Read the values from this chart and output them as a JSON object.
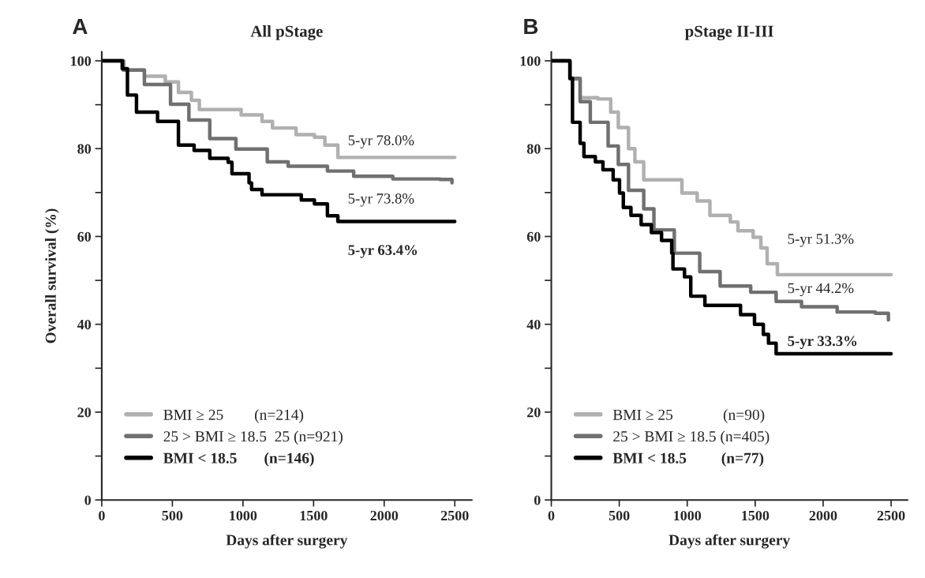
{
  "chart_data": [
    {
      "type": "step",
      "title": "All pStage",
      "xlabel": "Days after surgery",
      "ylabel": "Overall survival (%)",
      "xlim": [
        0,
        2620
      ],
      "ylim": [
        0,
        102
      ],
      "xticks": [
        0,
        500,
        1000,
        1500,
        2000,
        2500
      ],
      "yticks": [
        0,
        {
          "value": 10,
          "label": null
        },
        20,
        {
          "value": 30,
          "label": null
        },
        40,
        {
          "value": 50,
          "label": null
        },
        60,
        {
          "value": 70,
          "label": null
        },
        80,
        {
          "value": 90,
          "label": null
        },
        100
      ],
      "grid": false,
      "legend": "bottom left",
      "annotations": [
        "A",
        "5-yr 78.0%",
        "5-yr 73.8%",
        "5-yr 63.4%"
      ],
      "series": [
        {
          "name": "BMI ≥ 25        (n=214)",
          "color": "#b0b0b0",
          "x": [
            0,
            154,
            302,
            450,
            543,
            635,
            691,
            913,
            987,
            1135,
            1209,
            1376,
            1506,
            1580,
            1672,
            2500
          ],
          "values": [
            100,
            97.9,
            96.5,
            95.2,
            92.8,
            91.0,
            88.9,
            88.9,
            87.7,
            86.2,
            84.7,
            83.2,
            82.6,
            80.8,
            78.0,
            78.0
          ]
        },
        {
          "name": "25 > BMI ≥ 18.5  25 (n=921)",
          "color": "#707070",
          "x": [
            0,
            154,
            302,
            487,
            617,
            765,
            950,
            1172,
            1320,
            1598,
            1784,
            2061,
            2395,
            2480
          ],
          "values": [
            100,
            97.9,
            94.6,
            90.1,
            86.5,
            82.3,
            79.9,
            77.0,
            76.0,
            74.9,
            73.7,
            73.1,
            73.0,
            72.2
          ]
        },
        {
          "name": "BMI < 18.5       (n=146)",
          "color": "#000000",
          "x": [
            0,
            145,
            182,
            246,
            395,
            478,
            543,
            654,
            765,
            895,
            922,
            1043,
            1061,
            1135,
            1376,
            1413,
            1506,
            1598,
            1672,
            2500
          ],
          "values": [
            100,
            98.2,
            92.2,
            88.3,
            86.2,
            86.2,
            80.8,
            79.6,
            77.8,
            76.9,
            74.3,
            72.2,
            70.7,
            69.5,
            69.5,
            68.3,
            67.4,
            64.7,
            63.4,
            63.4
          ]
        }
      ]
    },
    {
      "type": "step",
      "title": "pStage II-III",
      "xlabel": "Days after surgery",
      "xlim": [
        0,
        2620
      ],
      "ylim": [
        0,
        102
      ],
      "xticks": [
        0,
        500,
        1000,
        1500,
        2000,
        2500
      ],
      "yticks": [
        0,
        {
          "value": 10,
          "label": null
        },
        20,
        {
          "value": 30,
          "label": null
        },
        40,
        {
          "value": 50,
          "label": null
        },
        60,
        {
          "value": 70,
          "label": null
        },
        80,
        {
          "value": 90,
          "label": null
        },
        100
      ],
      "grid": false,
      "legend": "bottom left",
      "annotations": [
        "B",
        "5-yr 51.3%",
        "5-yr 44.2%",
        "5-yr 33.3%"
      ],
      "series": [
        {
          "name": "BMI ≥ 25             (n=90)",
          "color": "#b0b0b0",
          "x": [
            0,
            137,
            212,
            343,
            437,
            493,
            568,
            615,
            680,
            905,
            961,
            1073,
            1167,
            1317,
            1373,
            1485,
            1542,
            1588,
            1663,
            2500
          ],
          "values": [
            100,
            95.8,
            91.6,
            91.3,
            88.3,
            84.8,
            80.0,
            77.0,
            72.9,
            72.9,
            69.9,
            68.1,
            64.8,
            63.3,
            61.3,
            59.8,
            57.4,
            53.8,
            51.3,
            51.3
          ]
        },
        {
          "name": "25 > BMI ≥ 18.5 (n=405)",
          "color": "#707070",
          "x": [
            0,
            137,
            212,
            287,
            418,
            493,
            568,
            680,
            755,
            905,
            1092,
            1242,
            1467,
            1654,
            1841,
            2103,
            2384,
            2480
          ],
          "values": [
            100,
            96.0,
            90.7,
            86.0,
            80.6,
            76.4,
            70.5,
            66.3,
            61.5,
            56.2,
            52.0,
            48.7,
            47.3,
            45.2,
            44.0,
            42.8,
            42.5,
            41.0
          ]
        },
        {
          "name": "BMI < 18.5         (n=77)",
          "color": "#000000",
          "x": [
            0,
            137,
            156,
            212,
            240,
            324,
            380,
            455,
            502,
            530,
            586,
            661,
            736,
            811,
            886,
            895,
            980,
            1026,
            1130,
            1373,
            1392,
            1495,
            1560,
            1598,
            1654,
            2500
          ],
          "values": [
            100,
            96.0,
            86.0,
            81.2,
            78.2,
            77.0,
            75.2,
            72.9,
            69.9,
            66.6,
            64.8,
            62.7,
            60.9,
            59.1,
            56.2,
            52.6,
            50.8,
            46.4,
            44.3,
            44.3,
            42.2,
            40.0,
            37.7,
            35.7,
            33.3,
            33.3
          ]
        }
      ]
    }
  ]
}
